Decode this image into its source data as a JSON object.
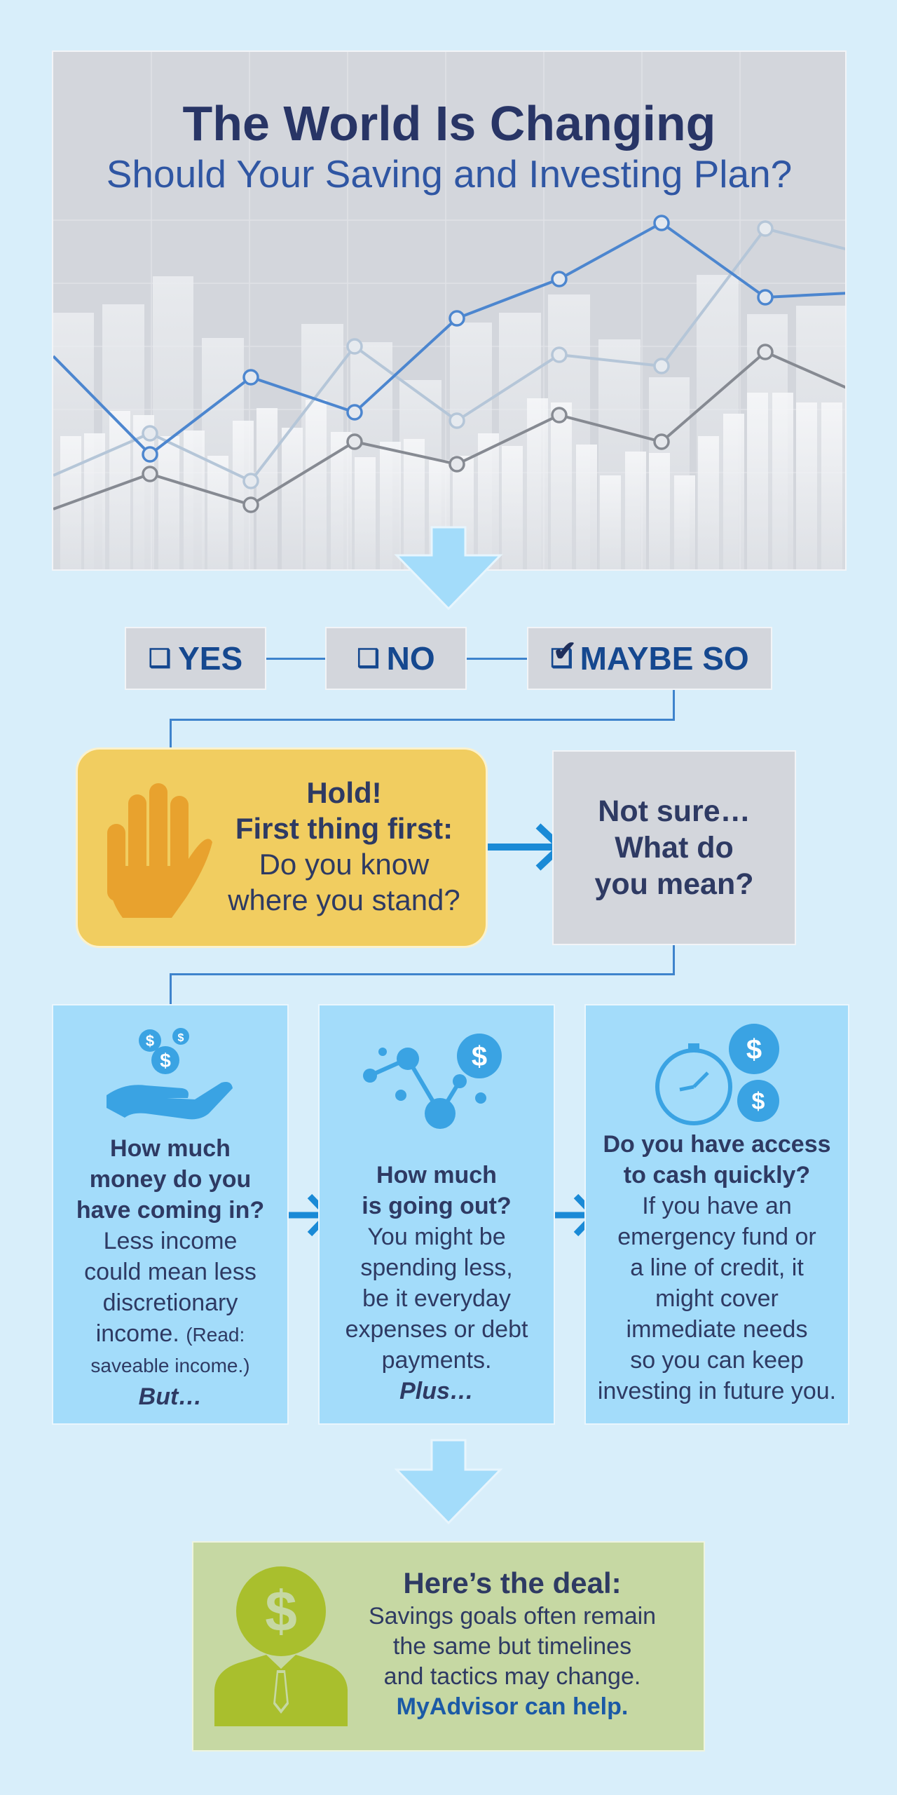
{
  "hero": {
    "title": "The World Is Changing",
    "subtitle": "Should Your Saving and Investing Plan?"
  },
  "options": {
    "yes": {
      "label": "YES",
      "checked": false
    },
    "no": {
      "label": "NO",
      "checked": false
    },
    "maybe": {
      "label": "MAYBE SO",
      "checked": true
    }
  },
  "hold": {
    "line1": "Hold!",
    "line2": "First thing first:",
    "line3": "Do you know",
    "line4": "where you stand?"
  },
  "not_sure": {
    "line1": "Not sure…",
    "line2": "What do",
    "line3": "you mean?"
  },
  "cards": {
    "income": {
      "heading1": "How much",
      "heading2": "money do you",
      "heading3": "have coming in?",
      "body1": "Less income",
      "body2": "could mean less",
      "body3": "discretionary",
      "body4": "income.",
      "note1": "(Read:",
      "note2": "saveable income.)",
      "closing": "But…"
    },
    "spending": {
      "heading1": "How much",
      "heading2": "is going out?",
      "body1": "You might be",
      "body2": "spending less,",
      "body3": "be it everyday",
      "body4": "expenses or debt",
      "body5": "payments.",
      "closing": "Plus…"
    },
    "cash": {
      "heading1": "Do you have access",
      "heading2": "to cash quickly?",
      "body1": "If you have an",
      "body2": "emergency fund or",
      "body3": "a line of credit, it",
      "body4": "might cover",
      "body5": "immediate needs",
      "body6": "so you can keep",
      "body7": "investing in future you."
    }
  },
  "deal": {
    "title": "Here’s the deal:",
    "line1": "Savings goals often remain",
    "line2": "the same but timelines",
    "line3": "and tactics may change.",
    "cta": "MyAdvisor can help."
  },
  "colors": {
    "background": "#d8eefa",
    "hero_panel": "#d3d6dc",
    "hold_yellow": "#f1cd60",
    "hand_orange": "#e8a22e",
    "card_blue": "#a3dcfa",
    "icon_blue": "#3aa3e3",
    "arrow_blue": "#1a8ad6",
    "deal_green": "#c6d8a3",
    "advisor_green": "#a9bf2d",
    "title_navy": "#283566",
    "label_blue": "#15488f"
  },
  "icons": {
    "hand": "raised-hand-icon",
    "income": "hand-with-coins-icon",
    "spending": "chart-dots-dollar-icon",
    "cash": "clock-dollar-icon",
    "advisor": "advisor-dollar-head-icon"
  }
}
